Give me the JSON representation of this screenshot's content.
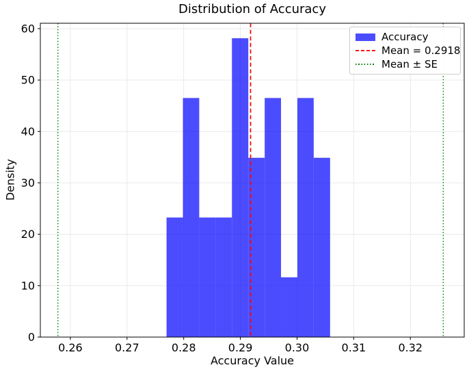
{
  "title": "Distribution of Accuracy",
  "axes": {
    "xlabel": "Accuracy Value",
    "ylabel": "Density"
  },
  "legend": {
    "position": "upper right",
    "items": [
      {
        "label": "Accuracy",
        "swatch": "patch",
        "color": "#0000ff",
        "opacity": 0.7
      },
      {
        "label": "Mean = 0.2918",
        "swatch": "dashed-line",
        "color": "#ff0000"
      },
      {
        "label": "Mean ± SE",
        "swatch": "dotted-line",
        "color": "#008000"
      }
    ]
  },
  "chart_data": {
    "type": "bar",
    "subtype": "histogram",
    "title": "Distribution of Accuracy",
    "xlabel": "Accuracy Value",
    "ylabel": "Density",
    "series_name": "Accuracy",
    "bin_edges": [
      0.27697,
      0.27986,
      0.28274,
      0.28563,
      0.28851,
      0.2914,
      0.29429,
      0.29717,
      0.30006,
      0.30294,
      0.30583
    ],
    "densities": [
      23.26,
      46.51,
      23.26,
      23.26,
      58.14,
      34.88,
      46.51,
      11.63,
      46.51,
      34.88
    ],
    "bar_color": "#0000ff",
    "bar_opacity": 0.7,
    "mean_line": {
      "value": 0.2918,
      "color": "#ff0000",
      "style": "dashed",
      "label": "Mean = 0.2918"
    },
    "se_lines": {
      "values": [
        0.2578,
        0.3258
      ],
      "color": "#008000",
      "style": "dotted",
      "label": "Mean ± SE"
    },
    "xlim": [
      0.2547,
      0.3295
    ],
    "ylim": [
      0,
      61.05
    ],
    "x_ticks": {
      "values": [
        0.26,
        0.27,
        0.28,
        0.29,
        0.3,
        0.31,
        0.32
      ],
      "labels": [
        "0.26",
        "0.27",
        "0.28",
        "0.29",
        "0.30",
        "0.31",
        "0.32"
      ]
    },
    "y_ticks": {
      "values": [
        0,
        10,
        20,
        30,
        40,
        50,
        60
      ],
      "labels": [
        "0",
        "10",
        "20",
        "30",
        "40",
        "50",
        "60"
      ]
    },
    "grid": true,
    "grid_color": "#e7e7e7",
    "spine_color": "#000000",
    "legend_position": "upper right"
  }
}
